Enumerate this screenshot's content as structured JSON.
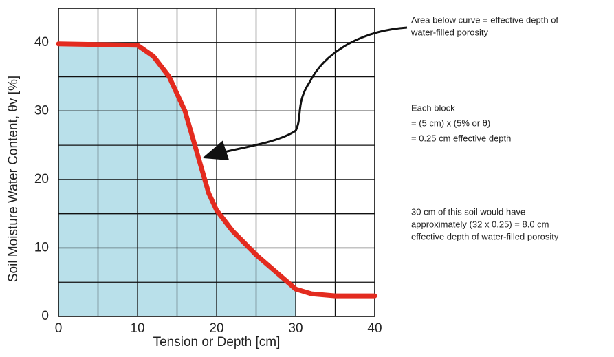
{
  "chart_data": {
    "type": "line",
    "x": [
      0,
      10,
      12,
      14,
      16,
      17.5,
      18,
      19,
      20,
      22,
      25,
      28,
      30,
      32,
      35,
      40
    ],
    "values": [
      39.8,
      39.6,
      38,
      35,
      30,
      24,
      22,
      18,
      15.5,
      12.5,
      9,
      6,
      4,
      3.3,
      3,
      3
    ],
    "color": "#e32b1f",
    "fill_color": "#b9e0ea",
    "fill_xlim": [
      0,
      30
    ],
    "xlim": [
      0,
      40
    ],
    "xticks": [
      0,
      10,
      20,
      30,
      40
    ],
    "x_minor_grid": [
      5,
      15,
      25,
      35
    ],
    "ylim": [
      0,
      45
    ],
    "yticks": [
      0,
      10,
      20,
      30,
      40
    ],
    "y_minor_grid": [
      5,
      15,
      25,
      35,
      45
    ],
    "grid": true,
    "xlabel": "Tension or Depth [cm]",
    "ylabel": "Soil Moisture Water Content, θv [%]",
    "annotations": [
      [
        "Area below curve = effective depth of",
        "water-filled porosity"
      ],
      [
        "Each block",
        "= (5 cm) x (5% or θ)",
        "= 0.25 cm effective depth"
      ],
      [
        "30 cm of this soil would have",
        "approximately (32 x 0.25) = 8.0 cm",
        "effective depth of water-filled porosity"
      ]
    ]
  }
}
